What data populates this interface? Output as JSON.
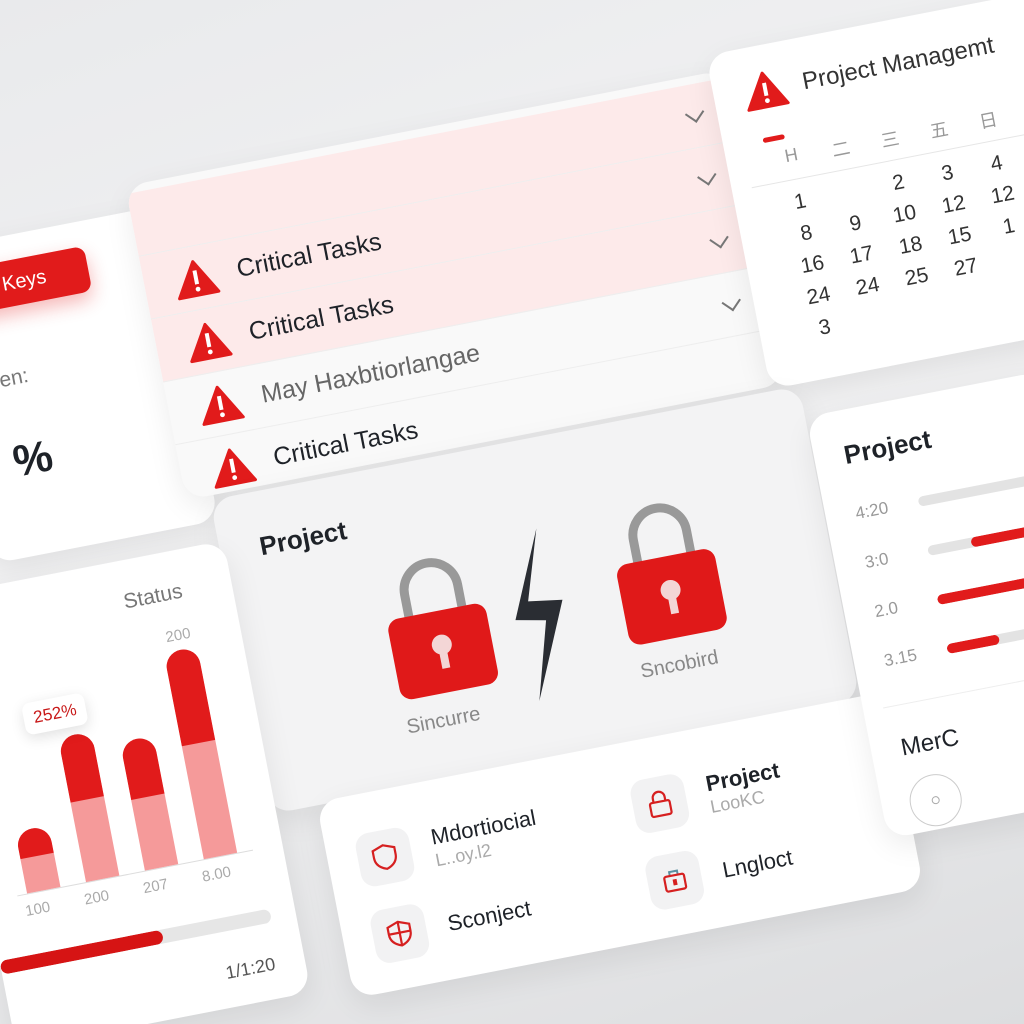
{
  "colors": {
    "accent": "#e11b1b",
    "accent_light": "#f59a9a",
    "background": "#eeeeef"
  },
  "left_card": {
    "button": "Keys",
    "label": "den:",
    "value": "%"
  },
  "tasks": {
    "rows": [
      {
        "label": "",
        "icon": "",
        "pink": true
      },
      {
        "label": "Critical Tasks",
        "icon": "warning-icon",
        "pink": true
      },
      {
        "label": "Critical Tasks",
        "icon": "warning-icon",
        "pink": true
      },
      {
        "label": "May Haxbtiorlangae",
        "icon": "warning-icon",
        "pink": false
      },
      {
        "label": "Critical Tasks",
        "icon": "warning-icon",
        "pink": false
      }
    ]
  },
  "calendar": {
    "title": "Project Managemt",
    "weekdays": [
      "H",
      "二",
      "三",
      "五",
      "日"
    ],
    "days": [
      "1",
      "",
      "2",
      "3",
      "4",
      "8",
      "9",
      "10",
      "12",
      "12",
      "16",
      "17",
      "18",
      "15",
      "1",
      "24",
      "24",
      "25",
      "27",
      "",
      "3",
      "",
      "",
      "",
      ""
    ]
  },
  "lock_card": {
    "title": "Project",
    "left_label": "Sincurre",
    "right_label": "Sncobird"
  },
  "list_card": {
    "items": [
      {
        "name": "Mdortiocial",
        "sub": "L..oy.l2",
        "icon": "shield-icon"
      },
      {
        "name": "Sconject",
        "sub": "",
        "icon": "shield-icon"
      },
      {
        "name": "Project",
        "sub": "LooKC",
        "icon": "lock-icon"
      },
      {
        "name": "Lngloct",
        "sub": "",
        "icon": "briefcase-icon"
      }
    ]
  },
  "chart_card": {
    "title": "Status",
    "y_tick": "200",
    "tooltip": "252%",
    "footer": "1/1:20",
    "progress": 0.6,
    "chart_data": {
      "type": "bar",
      "categories": [
        "100",
        "200",
        "207",
        "8.00"
      ],
      "series": [
        {
          "values": [
            60,
            140,
            125,
            200
          ]
        }
      ],
      "ylim": [
        0,
        200
      ]
    }
  },
  "project_card": {
    "title": "Project",
    "rows": [
      {
        "label": "4:20",
        "start": 0,
        "fill": 0
      },
      {
        "label": "3:0",
        "start": 0.25,
        "fill": 0.75
      },
      {
        "label": "2.0",
        "start": 0,
        "fill": 1
      },
      {
        "label": "3.15",
        "start": 0,
        "fill": 0.3
      }
    ],
    "footer_title": "MerC"
  }
}
